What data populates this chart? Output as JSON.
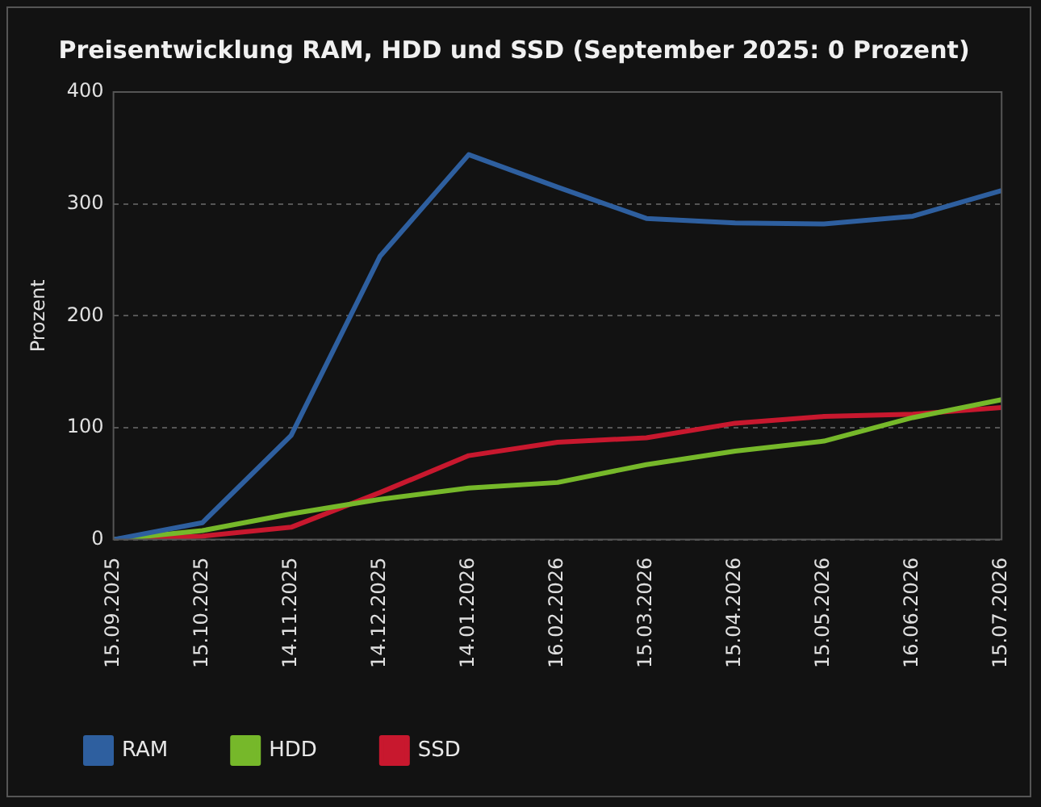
{
  "chart_data": {
    "type": "line",
    "title": "Preisentwicklung RAM, HDD und SSD (September 2025: 0 Prozent)",
    "ylabel": "Prozent",
    "categories": [
      "15.09.2025",
      "15.10.2025",
      "14.11.2025",
      "14.12.2025",
      "14.01.2026",
      "16.02.2026",
      "15.03.2026",
      "15.04.2026",
      "15.05.2026",
      "16.06.2026",
      "15.07.2026"
    ],
    "series": [
      {
        "name": "RAM",
        "color": "#2e5f9f",
        "values": [
          0,
          15,
          93,
          253,
          344,
          315,
          287,
          283,
          282,
          289,
          312
        ]
      },
      {
        "name": "HDD",
        "color": "#76b82a",
        "values": [
          0,
          8,
          23,
          36,
          46,
          51,
          67,
          79,
          88,
          109,
          125
        ]
      },
      {
        "name": "SSD",
        "color": "#c8182e",
        "values": [
          0,
          3,
          11,
          42,
          75,
          87,
          91,
          104,
          110,
          112,
          118
        ]
      }
    ],
    "ylim": [
      0,
      400
    ],
    "yticks": [
      0,
      100,
      200,
      300,
      400
    ],
    "grid": "y",
    "legend": "bottom left",
    "marker": "none",
    "line_style": "solid"
  }
}
